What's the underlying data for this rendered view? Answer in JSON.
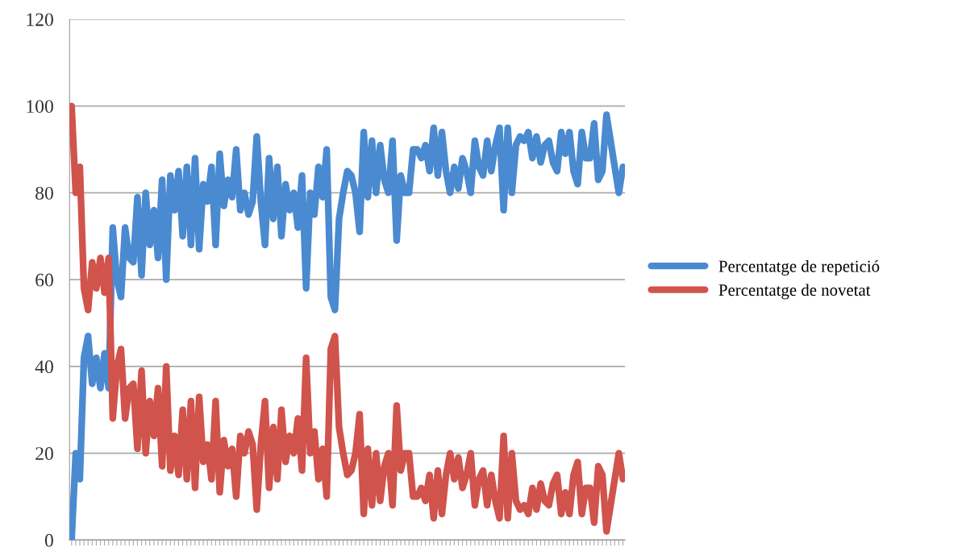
{
  "chart_data": {
    "type": "line",
    "categories": [
      null,
      null,
      null,
      null,
      null,
      null,
      null,
      null,
      null,
      null,
      null,
      null,
      null,
      null,
      null,
      null,
      null,
      null,
      null,
      null,
      null,
      null,
      null,
      null,
      null,
      null,
      null,
      null,
      null,
      null,
      null,
      null,
      null,
      null,
      null,
      null,
      null,
      null,
      null,
      null,
      null,
      null,
      null,
      null,
      null,
      null,
      null,
      null,
      null,
      null,
      null,
      null,
      null,
      null,
      null,
      null,
      null,
      null,
      null,
      null,
      null,
      null,
      null,
      null,
      null,
      null,
      null,
      null,
      null,
      null,
      null,
      null,
      null,
      null,
      null,
      null,
      null,
      null,
      null,
      null,
      null,
      null,
      null,
      null,
      null,
      null,
      null,
      null,
      null,
      null,
      null,
      null,
      null,
      null,
      null,
      null,
      null,
      null,
      null,
      null,
      null,
      null,
      null,
      null,
      null,
      null,
      null,
      null,
      null,
      null,
      null,
      null,
      null,
      null,
      null,
      null,
      null,
      null,
      null,
      null,
      null,
      null,
      null,
      null,
      null,
      null,
      null,
      null,
      null,
      null,
      null,
      null,
      null,
      null,
      null
    ],
    "series": [
      {
        "name": "Percentatge de repetició",
        "color": "#4a8ad0",
        "values": [
          0,
          20,
          14,
          42,
          47,
          36,
          42,
          35,
          43,
          35,
          72,
          60,
          56,
          72,
          65,
          64,
          79,
          61,
          80,
          68,
          76,
          65,
          83,
          60,
          84,
          76,
          85,
          70,
          86,
          68,
          88,
          67,
          82,
          78,
          86,
          68,
          89,
          77,
          83,
          79,
          90,
          76,
          80,
          75,
          78,
          93,
          78,
          68,
          88,
          74,
          86,
          70,
          82,
          76,
          80,
          72,
          84,
          58,
          80,
          75,
          86,
          79,
          90,
          56,
          53,
          74,
          80,
          85,
          84,
          80,
          71,
          94,
          79,
          92,
          80,
          91,
          83,
          80,
          92,
          69,
          84,
          80,
          80,
          90,
          90,
          88,
          91,
          85,
          95,
          84,
          94,
          85,
          80,
          86,
          81,
          88,
          85,
          80,
          92,
          86,
          84,
          92,
          85,
          91,
          95,
          76,
          95,
          80,
          91,
          93,
          92,
          94,
          88,
          93,
          87,
          91,
          92,
          87,
          85,
          94,
          89,
          94,
          85,
          82,
          94,
          88,
          88,
          96,
          83,
          85,
          98,
          92,
          86,
          80,
          86
        ]
      },
      {
        "name": "Percentatge de novetat",
        "color": "#d0534c",
        "values": [
          100,
          80,
          86,
          58,
          53,
          64,
          58,
          65,
          57,
          65,
          28,
          40,
          44,
          28,
          35,
          36,
          21,
          39,
          20,
          32,
          24,
          35,
          17,
          40,
          16,
          24,
          15,
          30,
          14,
          32,
          12,
          33,
          18,
          22,
          14,
          32,
          11,
          23,
          17,
          21,
          10,
          24,
          20,
          25,
          22,
          7,
          22,
          32,
          12,
          26,
          14,
          30,
          18,
          24,
          20,
          28,
          16,
          42,
          20,
          25,
          14,
          21,
          10,
          44,
          47,
          26,
          20,
          15,
          16,
          20,
          29,
          6,
          21,
          8,
          20,
          9,
          17,
          20,
          8,
          31,
          16,
          20,
          20,
          10,
          10,
          12,
          9,
          15,
          5,
          16,
          6,
          15,
          20,
          14,
          19,
          12,
          15,
          20,
          8,
          14,
          16,
          8,
          15,
          9,
          5,
          24,
          5,
          20,
          9,
          7,
          8,
          6,
          12,
          7,
          13,
          9,
          8,
          13,
          15,
          6,
          11,
          6,
          15,
          18,
          6,
          12,
          12,
          4,
          17,
          15,
          2,
          8,
          14,
          20,
          14
        ]
      }
    ],
    "ylim": [
      0,
      120
    ],
    "yticks": [
      0,
      20,
      40,
      60,
      80,
      100,
      120
    ],
    "grid": "y",
    "legend": "right",
    "tick_labels": "y",
    "line_style": "solid",
    "marker": "none"
  }
}
